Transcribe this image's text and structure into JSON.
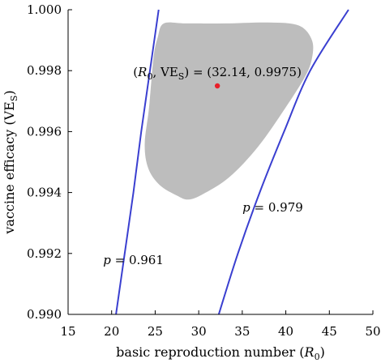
{
  "chart_data": {
    "type": "line",
    "xlim": [
      15,
      50
    ],
    "ylim": [
      0.99,
      1.0
    ],
    "x_ticks": [
      "15",
      "20",
      "25",
      "30",
      "35",
      "40",
      "45",
      "50"
    ],
    "y_ticks": [
      "0.990",
      "0.992",
      "0.994",
      "0.996",
      "0.998",
      "1.000"
    ],
    "xlabel": {
      "main": "basic reproduction number (",
      "sym": "R",
      "sub": "0",
      "end": ")"
    },
    "ylabel": {
      "main": "vaccine efficacy (VE",
      "sub": "S",
      "end": ")"
    },
    "series": [
      {
        "name": "p = 0.961",
        "color": "#3a3fd0",
        "points": [
          [
            20.5,
            0.99
          ],
          [
            21.5,
            0.992
          ],
          [
            22.5,
            0.994
          ],
          [
            23.4,
            0.996
          ],
          [
            24.4,
            0.998
          ],
          [
            25.4,
            1.0
          ]
        ]
      },
      {
        "name": "p = 0.979",
        "color": "#3a3fd0",
        "points": [
          [
            32.3,
            0.99
          ],
          [
            34.5,
            0.992
          ],
          [
            37.0,
            0.994
          ],
          [
            39.8,
            0.996
          ],
          [
            42.8,
            0.998
          ],
          [
            47.2,
            1.0
          ]
        ]
      }
    ],
    "curve_labels": [
      {
        "var": "p",
        "text": " = 0.961",
        "x": 22.5,
        "y": 0.99165
      },
      {
        "var": "p",
        "text": " = 0.979",
        "x": 38.5,
        "y": 0.99338
      }
    ],
    "region": {
      "color": "#bdbdbd",
      "points": [
        [
          26.0,
          0.99955
        ],
        [
          28.5,
          0.99955
        ],
        [
          33.0,
          0.99955
        ],
        [
          38.0,
          0.99958
        ],
        [
          41.5,
          0.99948
        ],
        [
          43.0,
          0.999
        ],
        [
          43.0,
          0.9984
        ],
        [
          42.2,
          0.9978
        ],
        [
          40.0,
          0.9968
        ],
        [
          36.8,
          0.9955
        ],
        [
          33.5,
          0.9945
        ],
        [
          30.5,
          0.99395
        ],
        [
          28.8,
          0.99377
        ],
        [
          27.5,
          0.9939
        ],
        [
          25.5,
          0.99425
        ],
        [
          24.2,
          0.9948
        ],
        [
          23.8,
          0.9956
        ],
        [
          24.3,
          0.9968
        ],
        [
          24.8,
          0.9984
        ],
        [
          25.3,
          0.9991
        ]
      ]
    },
    "point": {
      "x": 32.14,
      "y": 0.9975,
      "color": "#e8202a",
      "label": {
        "open": "(",
        "r": "R",
        "r_sub": "0",
        "comma": ", VE",
        "ve_sub": "S",
        "rest": ") = (32.14, 0.9975)"
      }
    }
  }
}
